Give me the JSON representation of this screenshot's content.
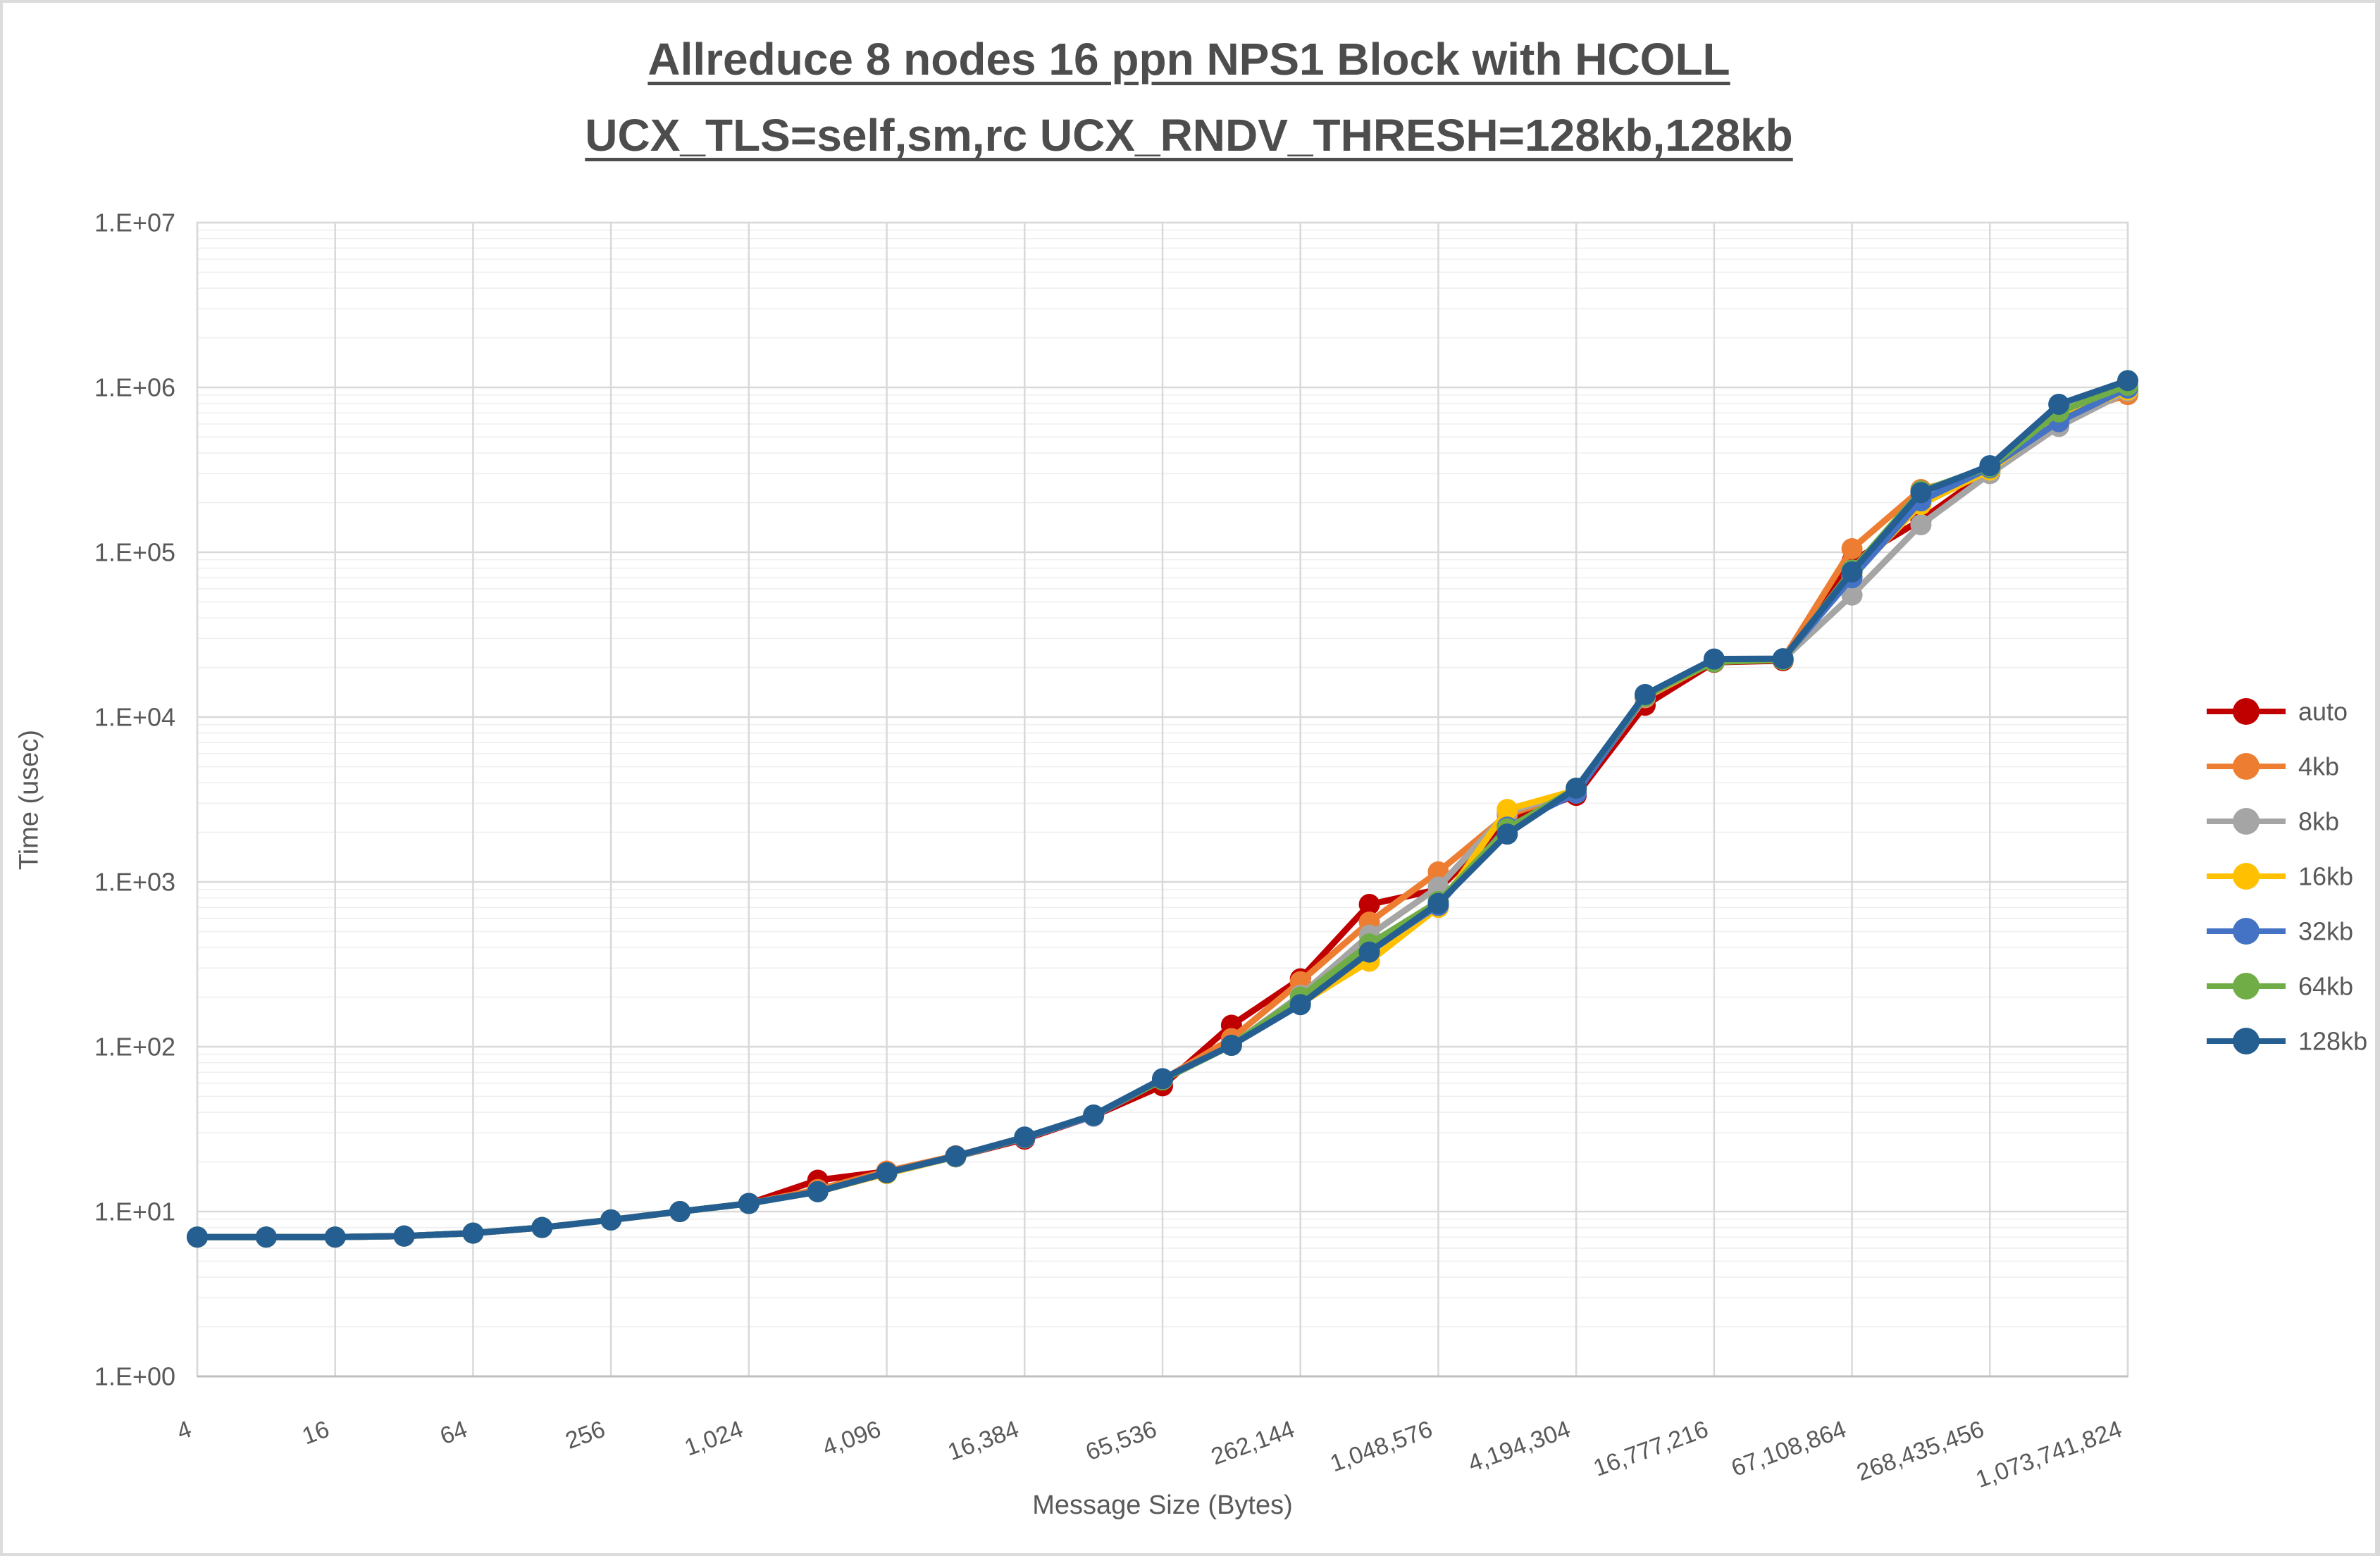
{
  "title": {
    "line1": "Allreduce 8 nodes 16 ppn NPS1 Block with HCOLL",
    "line2": "UCX_TLS=self,sm,rc UCX_RNDV_THRESH=128kb,128kb"
  },
  "y_axis": {
    "title": "Time (usec)",
    "tick_labels": [
      "1.E+00",
      "1.E+01",
      "1.E+02",
      "1.E+03",
      "1.E+04",
      "1.E+05",
      "1.E+06",
      "1.E+07"
    ]
  },
  "x_axis": {
    "title": "Message Size (Bytes)",
    "tick_labels": [
      "4",
      "16",
      "64",
      "256",
      "1,024",
      "4,096",
      "16,384",
      "65,536",
      "262,144",
      "1,048,576",
      "4,194,304",
      "16,777,216",
      "67,108,864",
      "268,435,456",
      "1,073,741,824"
    ]
  },
  "legend": {
    "items": [
      "auto",
      "4kb",
      "8kb",
      "16kb",
      "32kb",
      "64kb",
      "128kb"
    ]
  },
  "colors": {
    "grid_major": "#d9d9d9",
    "grid_minor": "#efefef",
    "plot_border": "#d9d9d9",
    "axis_line": "#bfbfbf",
    "tick_text": "#595959",
    "title_text": "#4d4d4d"
  },
  "chart_data": {
    "type": "line",
    "title": "Allreduce 8 nodes 16 ppn NPS1 Block with HCOLL UCX_TLS=self,sm,rc UCX_RNDV_THRESH=128kb,128kb",
    "xlabel": "Message Size (Bytes)",
    "ylabel": "Time (usec)",
    "x_scale": "log",
    "y_scale": "log",
    "ylim": [
      1,
      10000000
    ],
    "xlim": [
      4,
      1073741824
    ],
    "grid": "major x every 4x, log decade majors + log minors on y",
    "legend_position": "right",
    "marker": "circle",
    "x": [
      4,
      8,
      16,
      32,
      64,
      128,
      256,
      512,
      1024,
      2048,
      4096,
      8192,
      16384,
      32768,
      65536,
      131072,
      262144,
      524288,
      1048576,
      2097152,
      4194304,
      8388608,
      16777216,
      33554432,
      67108864,
      134217728,
      268435456,
      536870912,
      1073741824
    ],
    "x_tick_values": [
      4,
      16,
      64,
      256,
      1024,
      4096,
      16384,
      65536,
      262144,
      1048576,
      4194304,
      16777216,
      67108864,
      268435456,
      1073741824
    ],
    "x_tick_labels": [
      "4",
      "16",
      "64",
      "256",
      "1,024",
      "4,096",
      "16,384",
      "65,536",
      "262,144",
      "1,048,576",
      "4,194,304",
      "16,777,216",
      "67,108,864",
      "268,435,456",
      "1,073,741,824"
    ],
    "y_tick_labels": [
      "1.E+00",
      "1.E+01",
      "1.E+02",
      "1.E+03",
      "1.E+04",
      "1.E+05",
      "1.E+06",
      "1.E+07"
    ],
    "series": [
      {
        "name": "auto",
        "color": "#C00000",
        "values": [
          7.0,
          7.0,
          7.0,
          7.1,
          7.4,
          8.0,
          8.9,
          10.0,
          11.2,
          15.5,
          17.5,
          21.5,
          27.5,
          38,
          58,
          135,
          258,
          730,
          900,
          2350,
          3350,
          11800,
          21500,
          22000,
          88000,
          157000,
          312000,
          670000,
          935000
        ]
      },
      {
        "name": "4kb",
        "color": "#ED7D31",
        "values": [
          7.0,
          7.0,
          7.0,
          7.1,
          7.4,
          8.0,
          8.9,
          10.0,
          11.2,
          13.6,
          17.6,
          21.8,
          28,
          38,
          63,
          112,
          248,
          570,
          1150,
          2550,
          3500,
          13100,
          21800,
          22400,
          105000,
          240000,
          308000,
          655000,
          905000
        ]
      },
      {
        "name": "8kb",
        "color": "#A5A5A5",
        "values": [
          7.0,
          7.0,
          7.0,
          7.1,
          7.4,
          8.0,
          8.9,
          10.0,
          11.2,
          13.2,
          17.2,
          21.5,
          28,
          38,
          63,
          102,
          205,
          475,
          930,
          2650,
          3550,
          13200,
          21900,
          22400,
          55000,
          147000,
          300000,
          580000,
          950000
        ]
      },
      {
        "name": "16kb",
        "color": "#FFC000",
        "values": [
          7.0,
          7.0,
          7.0,
          7.1,
          7.4,
          8.0,
          8.9,
          10.0,
          11.2,
          13.2,
          17.0,
          21.5,
          28,
          38,
          63,
          102,
          183,
          330,
          700,
          2750,
          3600,
          13300,
          21700,
          22400,
          72000,
          195000,
          315000,
          640000,
          965000
        ]
      },
      {
        "name": "32kb",
        "color": "#4472C4",
        "values": [
          7.0,
          7.0,
          7.0,
          7.1,
          7.4,
          8.0,
          8.9,
          10.0,
          11.2,
          13.2,
          17.2,
          21.5,
          28,
          38,
          63,
          102,
          187,
          380,
          720,
          2150,
          3450,
          13400,
          22000,
          22500,
          70000,
          205000,
          325000,
          620000,
          990000
        ]
      },
      {
        "name": "64kb",
        "color": "#70AD47",
        "values": [
          7.0,
          7.0,
          7.0,
          7.1,
          7.4,
          8.0,
          8.9,
          10.0,
          11.2,
          13.2,
          17.2,
          21.6,
          28.2,
          38.5,
          63,
          102,
          200,
          420,
          760,
          2100,
          3700,
          13500,
          21600,
          22300,
          78000,
          235000,
          330000,
          710000,
          1030000
        ]
      },
      {
        "name": "128kb",
        "color": "#255E91",
        "values": [
          7.0,
          7.0,
          7.0,
          7.1,
          7.4,
          8.0,
          8.9,
          10.0,
          11.2,
          13.2,
          17.2,
          21.7,
          28.3,
          38.5,
          64,
          102,
          180,
          375,
          740,
          1950,
          3700,
          13700,
          22500,
          22600,
          76000,
          230000,
          335000,
          790000,
          1100000
        ]
      }
    ]
  }
}
